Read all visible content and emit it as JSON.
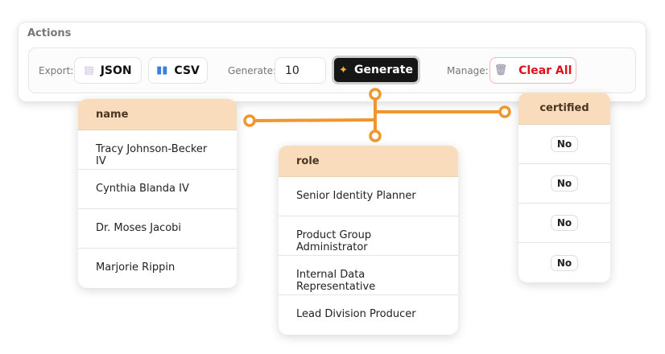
{
  "actions": {
    "title": "Actions",
    "export_label": "Export:",
    "json_label": "JSON",
    "csv_label": "CSV",
    "generate_label": "Generate:",
    "generate_count": "10",
    "generate_button": "Generate",
    "manage_label": "Manage:",
    "clear_button": "Clear All"
  },
  "icons": {
    "json": "document-icon",
    "csv": "bar-chart-icon",
    "generate": "sparkles-icon",
    "clear": "trash-icon"
  },
  "colors": {
    "accent": "#f0962e",
    "header": "#f9dcbc",
    "danger": "#e0101e"
  },
  "tables": {
    "name": {
      "header": "name",
      "rows": [
        "Tracy Johnson-Becker IV",
        "Cynthia Blanda IV",
        "Dr. Moses Jacobi",
        "Marjorie Rippin"
      ]
    },
    "role": {
      "header": "role",
      "rows": [
        "Senior Identity Planner",
        "Product Group Administrator",
        "Internal Data Representative",
        "Lead Division Producer"
      ]
    },
    "certified": {
      "header": "certified",
      "rows": [
        "No",
        "No",
        "No",
        "No"
      ]
    }
  }
}
